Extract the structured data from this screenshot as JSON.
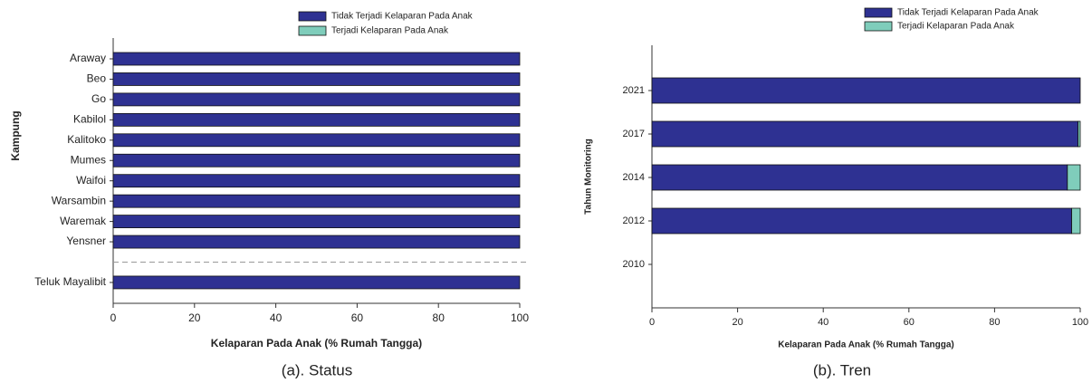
{
  "chart_data": [
    {
      "type": "bar",
      "orientation": "horizontal",
      "stacked": true,
      "y_label": "Kampung",
      "x_label": "Kelaparan Pada Anak (% Rumah Tangga)",
      "caption": "(a). Status",
      "categories": [
        "Araway",
        "Beo",
        "Go",
        "Kabilol",
        "Kalitoko",
        "Mumes",
        "Waifoi",
        "Warsambin",
        "Waremak",
        "Yensner",
        null,
        "Teluk Mayalibit"
      ],
      "series": [
        {
          "name": "Tidak Terjadi Kelaparan Pada Anak",
          "color": "#2e3192",
          "values": [
            100,
            100,
            100,
            100,
            100,
            100,
            100,
            100,
            100,
            100,
            null,
            100
          ]
        },
        {
          "name": "Terjadi Kelaparan Pada Anak",
          "color": "#7fcdbb",
          "values": [
            0,
            0,
            0,
            0,
            0,
            0,
            0,
            0,
            0,
            0,
            null,
            0
          ]
        }
      ],
      "xlim": [
        0,
        100
      ],
      "xticks": [
        0,
        20,
        40,
        60,
        80,
        100
      ]
    },
    {
      "type": "bar",
      "orientation": "horizontal",
      "stacked": true,
      "y_label": "Tahun Monitoring",
      "x_label": "Kelaparan Pada Anak (% Rumah Tangga)",
      "caption": "(b). Tren",
      "categories": [
        "2021",
        "2017",
        "2014",
        "2012",
        "2010"
      ],
      "series": [
        {
          "name": "Tidak Terjadi Kelaparan Pada Anak",
          "color": "#2e3192",
          "values": [
            100,
            99.5,
            97,
            98,
            null
          ]
        },
        {
          "name": "Terjadi Kelaparan Pada Anak",
          "color": "#7fcdbb",
          "values": [
            0,
            0.5,
            3,
            2,
            null
          ]
        }
      ],
      "xlim": [
        0,
        100
      ],
      "xticks": [
        0,
        20,
        40,
        60,
        80,
        100
      ]
    }
  ]
}
